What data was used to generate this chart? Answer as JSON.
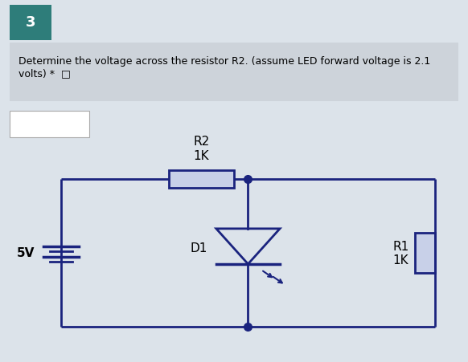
{
  "bg_top": "#dce3ea",
  "bg_circuit": "#ffffff",
  "circuit_color": "#1a237e",
  "resistor_fill": "#c8d0e8",
  "title_bg": "#2e7d7a",
  "title_text": "3",
  "label_R2": "R2\n1K",
  "label_R1": "R1\n1K",
  "label_D1": "D1",
  "label_5V": "5V",
  "line_width": 2.0,
  "dot_color": "#1a237e",
  "dot_size": 7
}
